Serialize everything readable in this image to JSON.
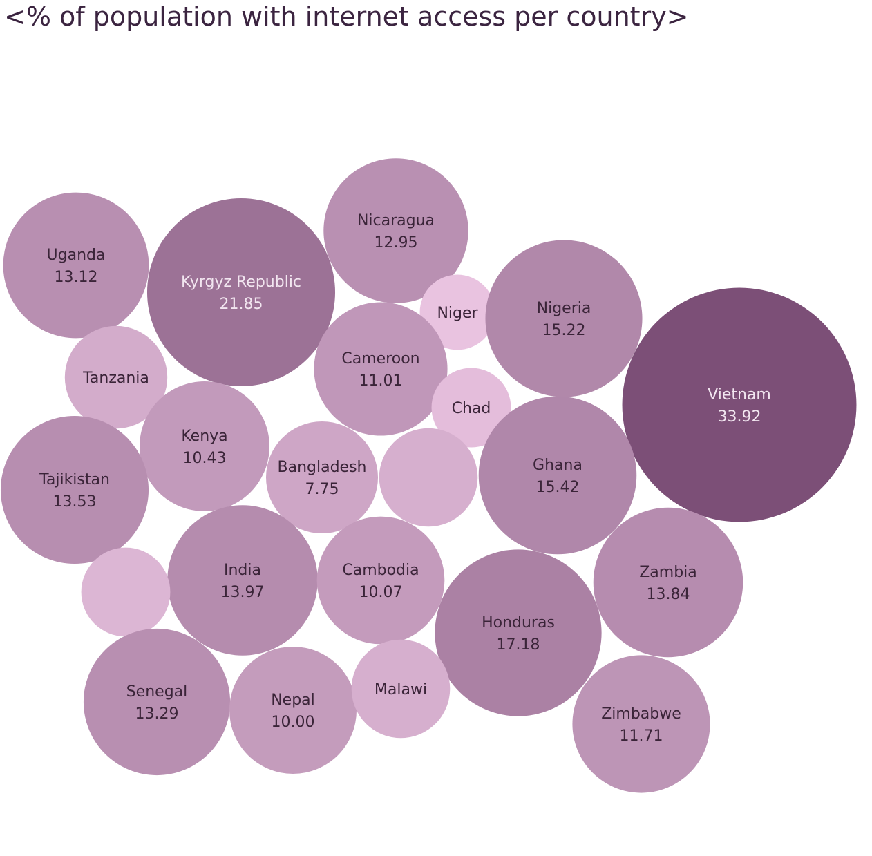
{
  "title": "<% of population with internet access per country>",
  "chart_data": {
    "type": "bubble",
    "title": "<% of population with internet access per country>",
    "color_scale": {
      "low": "#e9c3e0",
      "high": "#7c4f77"
    },
    "items": [
      {
        "name": "Uganda",
        "value": 13.12,
        "label": "13.12"
      },
      {
        "name": "Kyrgyz Republic",
        "value": 21.85,
        "label": "21.85"
      },
      {
        "name": "Nicaragua",
        "value": 12.95,
        "label": "12.95"
      },
      {
        "name": "Niger",
        "value": 3.5,
        "label": ""
      },
      {
        "name": "Nigeria",
        "value": 15.22,
        "label": "15.22"
      },
      {
        "name": "Vietnam",
        "value": 33.92,
        "label": "33.92"
      },
      {
        "name": "Tanzania",
        "value": 6.5,
        "label": ""
      },
      {
        "name": "Cameroon",
        "value": 11.01,
        "label": "11.01"
      },
      {
        "name": "Chad",
        "value": 3.9,
        "label": ""
      },
      {
        "name": "Kenya",
        "value": 10.43,
        "label": "10.43"
      },
      {
        "name": "Tajikistan",
        "value": 13.53,
        "label": "13.53"
      },
      {
        "name": "Bangladesh",
        "value": 7.75,
        "label": "7.75"
      },
      {
        "name": "",
        "value": 6.0,
        "label": ""
      },
      {
        "name": "Ghana",
        "value": 15.42,
        "label": "15.42"
      },
      {
        "name": "India",
        "value": 13.97,
        "label": "13.97"
      },
      {
        "name": "Cambodia",
        "value": 10.07,
        "label": "10.07"
      },
      {
        "name": "",
        "value": 4.9,
        "label": ""
      },
      {
        "name": "Honduras",
        "value": 17.18,
        "label": "17.18"
      },
      {
        "name": "Zambia",
        "value": 13.84,
        "label": "13.84"
      },
      {
        "name": "Senegal",
        "value": 13.29,
        "label": "13.29"
      },
      {
        "name": "Nepal",
        "value": 10.0,
        "label": "10.00"
      },
      {
        "name": "Malawi",
        "value": 6.0,
        "label": ""
      },
      {
        "name": "Zimbabwe",
        "value": 11.71,
        "label": "11.71"
      }
    ]
  }
}
